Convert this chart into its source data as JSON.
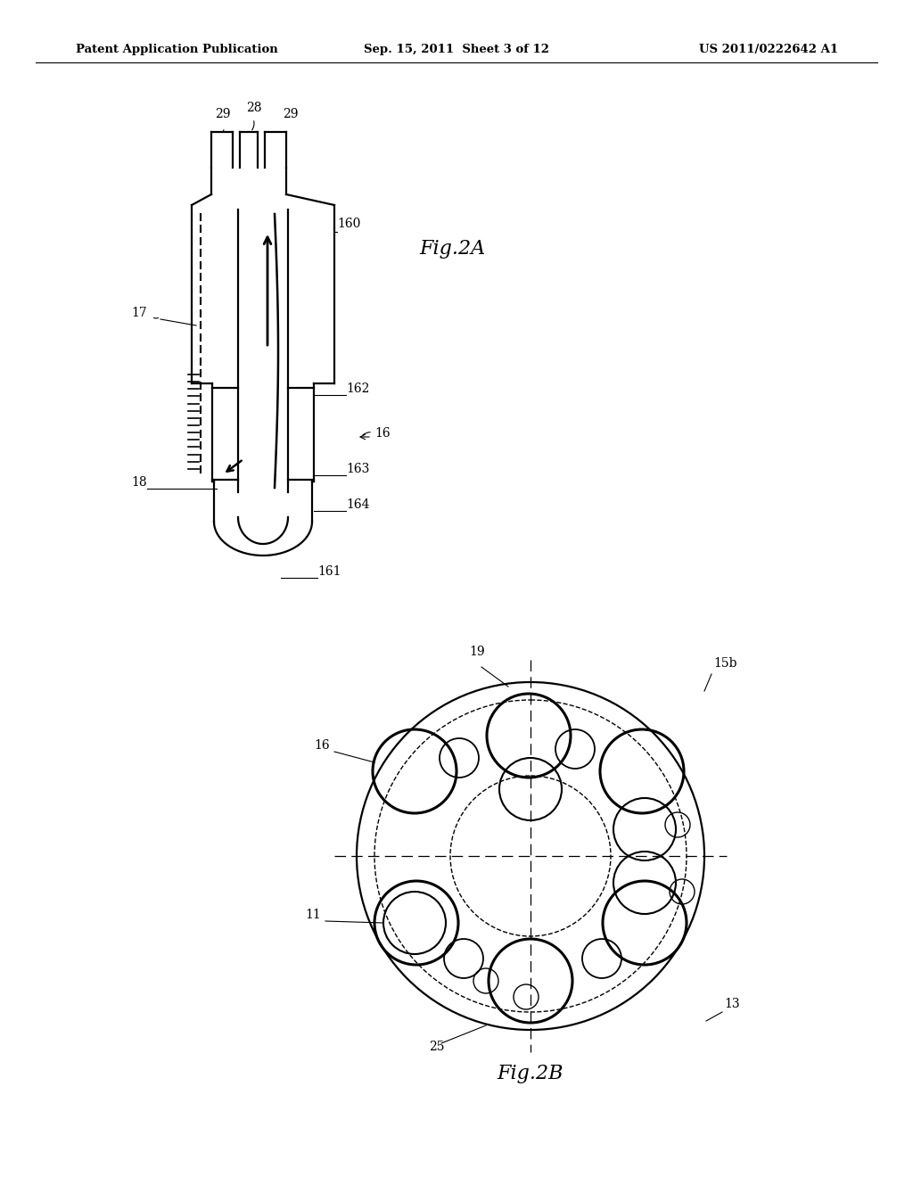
{
  "background_color": "#ffffff",
  "header_left": "Patent Application Publication",
  "header_center": "Sep. 15, 2011  Sheet 3 of 12",
  "header_right": "US 2011/0222642 A1",
  "fig2a_label": "Fig.2A",
  "fig2b_label": "Fig.2B"
}
